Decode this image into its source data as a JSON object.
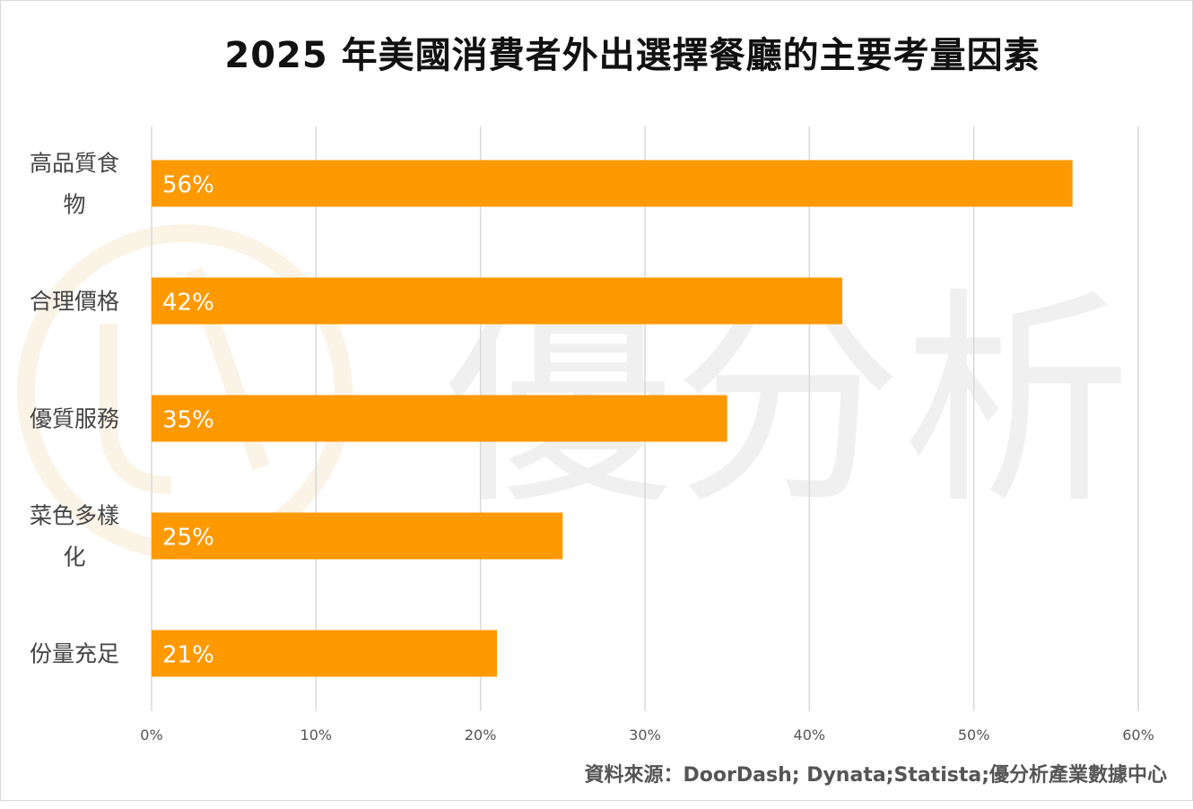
{
  "chart_data": {
    "type": "bar",
    "orientation": "horizontal",
    "title": "2025 年美國消費者外出選擇餐廳的主要考量因素",
    "categories": [
      "高品質食物",
      "合理價格",
      "優質服務",
      "菜色多樣化",
      "份量充足"
    ],
    "values": [
      56,
      42,
      35,
      25,
      21
    ],
    "value_labels": [
      "56%",
      "42%",
      "35%",
      "25%",
      "21%"
    ],
    "xlim": [
      0,
      60
    ],
    "x_ticks": [
      0,
      10,
      20,
      30,
      40,
      50,
      60
    ],
    "x_tick_labels": [
      "0%",
      "10%",
      "20%",
      "30%",
      "40%",
      "50%",
      "60%"
    ],
    "grid": true,
    "legend": "none",
    "colors": {
      "bar": "#ff9900",
      "grid": "#d9d9d9"
    }
  },
  "source": "資料來源：DoorDash; Dynata;Statista;優分析產業數據中心",
  "watermark": {
    "text": "優分析"
  }
}
